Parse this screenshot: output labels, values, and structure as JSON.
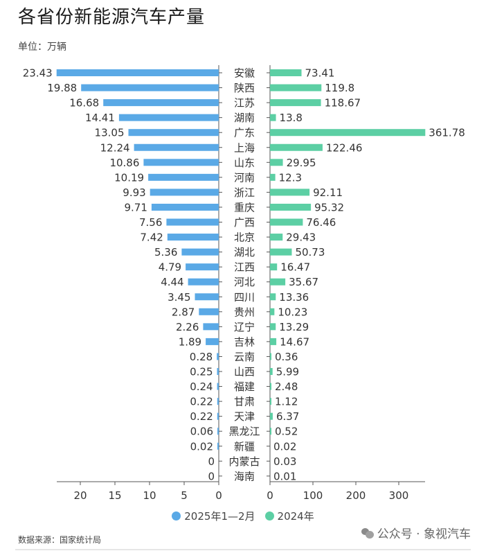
{
  "header": {
    "title": "各省份新能源汽车产量",
    "unit": "单位：万辆"
  },
  "legend": [
    {
      "label": "2025年1—2月",
      "color": "#5aa9e6"
    },
    {
      "label": "2024年",
      "color": "#5ccfa4"
    }
  ],
  "footer": {
    "source": "数据来源：国家统计局",
    "wechat": "公众号 · 象视汽车"
  },
  "chart_data": {
    "type": "bar",
    "orientation": "horizontal-butterfly",
    "title": "各省份新能源汽车产量",
    "subtitle": "单位：万辆",
    "categories": [
      "安徽",
      "陕西",
      "江苏",
      "湖南",
      "广东",
      "上海",
      "山东",
      "河南",
      "浙江",
      "重庆",
      "广西",
      "北京",
      "湖北",
      "江西",
      "河北",
      "四川",
      "贵州",
      "辽宁",
      "吉林",
      "云南",
      "山西",
      "福建",
      "甘肃",
      "天津",
      "黑龙江",
      "新疆",
      "内蒙古",
      "海南"
    ],
    "series": [
      {
        "name": "2025年1—2月",
        "color": "#5aa9e6",
        "side": "left",
        "values": [
          23.43,
          19.88,
          16.68,
          14.41,
          13.05,
          12.24,
          10.86,
          10.19,
          9.93,
          9.71,
          7.56,
          7.42,
          5.36,
          4.79,
          4.44,
          3.45,
          2.87,
          2.26,
          1.89,
          0.28,
          0.25,
          0.24,
          0.22,
          0.22,
          0.06,
          0.02,
          0,
          0
        ]
      },
      {
        "name": "2024年",
        "color": "#5ccfa4",
        "side": "right",
        "values": [
          73.41,
          119.8,
          118.67,
          13.8,
          361.78,
          122.46,
          29.95,
          12.3,
          92.11,
          95.32,
          76.46,
          29.43,
          50.73,
          16.47,
          35.67,
          13.36,
          10.23,
          13.29,
          14.67,
          0.36,
          5.99,
          2.48,
          1.12,
          6.37,
          0.52,
          0.02,
          0.03,
          0.01
        ]
      }
    ],
    "axes": {
      "left": {
        "ticks": [
          20,
          15,
          10,
          5,
          0
        ],
        "range": [
          0,
          23.43
        ],
        "reversed": true
      },
      "right": {
        "ticks": [
          0,
          100,
          200,
          300
        ],
        "range": [
          0,
          361.78
        ]
      }
    },
    "xlabel": "",
    "ylabel": "",
    "grid": false,
    "legend_position": "bottom",
    "source": "数据来源：国家统计局"
  }
}
